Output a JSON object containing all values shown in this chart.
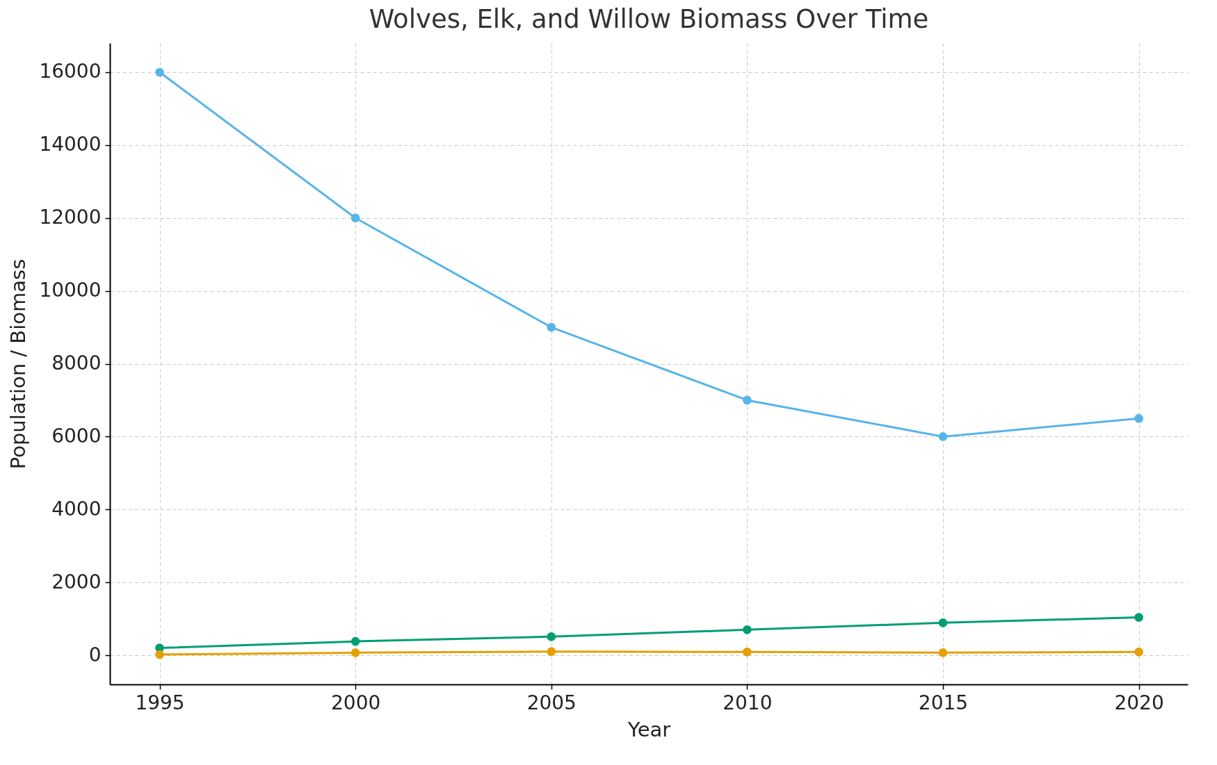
{
  "chart_data": {
    "type": "line",
    "title": "Wolves, Elk, and Willow Biomass Over Time",
    "xlabel": "Year",
    "ylabel": "Population / Biomass",
    "x": [
      1995,
      2000,
      2005,
      2010,
      2015,
      2020
    ],
    "series": [
      {
        "color": "#56b4e9",
        "values": [
          16000,
          12000,
          9000,
          7000,
          6000,
          6500
        ]
      },
      {
        "color": "#009e73",
        "values": [
          200,
          380,
          510,
          700,
          890,
          1040
        ]
      },
      {
        "color": "#e69f00",
        "values": [
          20,
          70,
          100,
          90,
          70,
          90
        ]
      }
    ],
    "xlim": [
      1993.73,
      2021.25
    ],
    "xticks": [
      1995,
      2000,
      2005,
      2010,
      2015,
      2020
    ],
    "ylim": [
      -800,
      16800
    ],
    "yticks": [
      0,
      2000,
      4000,
      6000,
      8000,
      10000,
      12000,
      14000,
      16000
    ],
    "grid": true,
    "legend": false,
    "marker": "circle",
    "line_style": "solid"
  }
}
